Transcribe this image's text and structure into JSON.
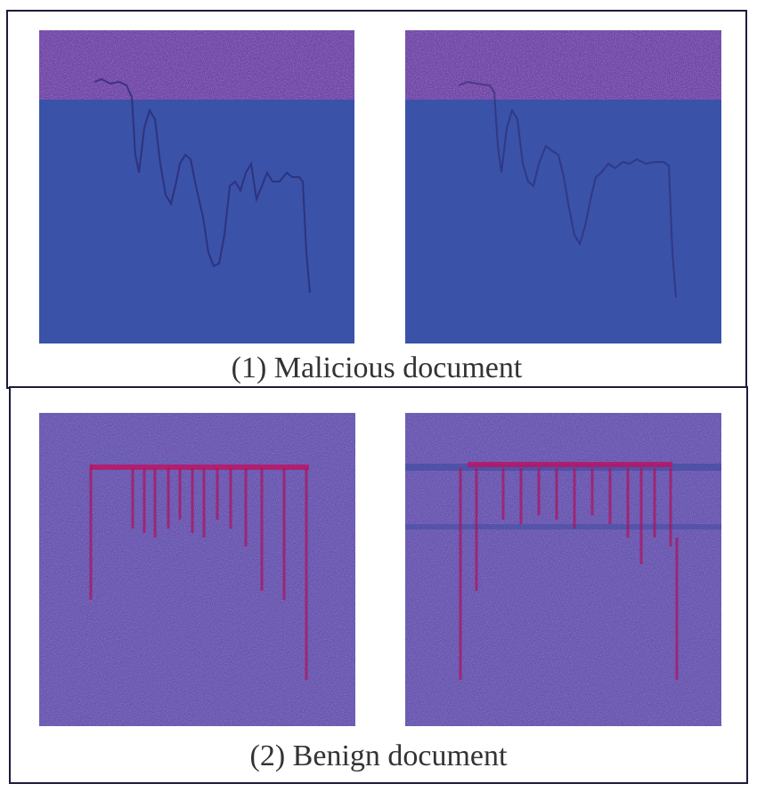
{
  "figure": {
    "panels": [
      {
        "caption": "(1) Malicious document",
        "images": [
          {
            "name": "malicious-image-1",
            "description": "visualization of malicious document"
          },
          {
            "name": "malicious-image-2",
            "description": "visualization of malicious document"
          }
        ]
      },
      {
        "caption": "(2) Benign document",
        "images": [
          {
            "name": "benign-image-1",
            "description": "visualization of benign document"
          },
          {
            "name": "benign-image-2",
            "description": "visualization of benign document"
          }
        ]
      }
    ]
  },
  "colors": {
    "border": "#1b1b3a",
    "blue_field": "#3a52a8",
    "magenta_noise": "#c0409a",
    "dark_trace": "#2a2a70",
    "caption_text": "#333333"
  }
}
